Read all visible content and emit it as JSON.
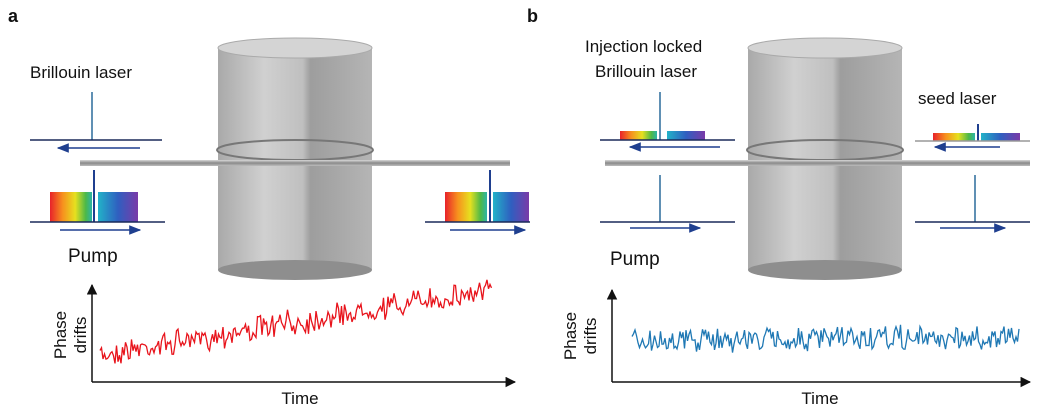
{
  "panels": [
    {
      "label": "a",
      "top_left_label": [
        "Brillouin laser"
      ],
      "pump_label": "Pump",
      "plot": {
        "ylabel": [
          "Phase",
          "drifts"
        ],
        "xlabel": "Time"
      }
    },
    {
      "label": "b",
      "top_left_label": [
        "Injection locked",
        "Brillouin laser"
      ],
      "pump_label": "Pump",
      "top_right_label": "seed laser",
      "plot": {
        "ylabel": [
          "Phase",
          "drifts"
        ],
        "xlabel": "Time"
      }
    }
  ]
}
